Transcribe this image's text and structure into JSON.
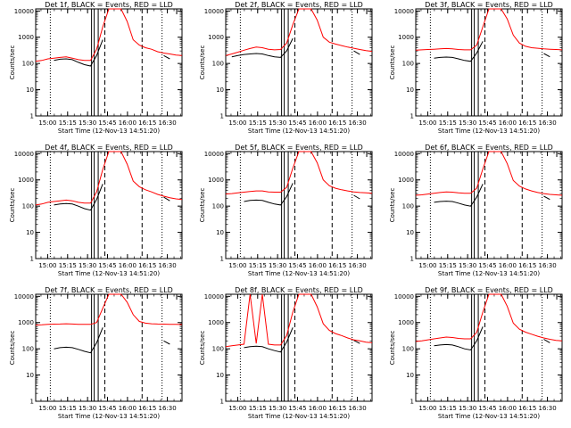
{
  "shared": {
    "xlabel": "Start Time (12-Nov-13 14:51:20)",
    "ylabel": "Counts/sec",
    "x_ticks": [
      "15:00",
      "15:15",
      "15:30",
      "15:45",
      "16:00",
      "16:15",
      "16:30"
    ],
    "y_ticks": [
      "1",
      "10",
      "100",
      "1000",
      "10000"
    ],
    "xlim_minutes_after_start": [
      0,
      110
    ],
    "ylim": [
      1,
      12000
    ],
    "y_scale": "log",
    "line_colors": {
      "events": "#000000",
      "lld": "#ff0000"
    }
  },
  "chart_data": [
    {
      "type": "line",
      "title": "Det 1f, BLACK = Events, RED = LLD",
      "series": [
        {
          "values": [
            null,
            null,
            null,
            130,
            145,
            150,
            140,
            110,
            90,
            80,
            200,
            800,
            null,
            null,
            null,
            null,
            null,
            null,
            null,
            null,
            null,
            200,
            150,
            null,
            null
          ]
        },
        {
          "values": [
            120,
            130,
            150,
            160,
            170,
            180,
            160,
            140,
            130,
            130,
            350,
            2500,
            12000,
            12000,
            12000,
            4000,
            800,
            500,
            400,
            350,
            280,
            250,
            230,
            210,
            200
          ]
        }
      ]
    },
    {
      "type": "line",
      "title": "Det 2f, BLACK = Events, RED = LLD",
      "series": [
        {
          "values": [
            null,
            180,
            200,
            220,
            230,
            240,
            230,
            200,
            180,
            170,
            300,
            900,
            null,
            null,
            null,
            null,
            null,
            null,
            null,
            null,
            null,
            300,
            220,
            null,
            null
          ]
        },
        {
          "values": [
            200,
            230,
            270,
            320,
            370,
            420,
            400,
            350,
            330,
            340,
            600,
            3000,
            12000,
            12000,
            12000,
            4500,
            1000,
            650,
            550,
            480,
            420,
            380,
            340,
            310,
            290
          ]
        }
      ]
    },
    {
      "type": "line",
      "title": "Det 3f, BLACK = Events, RED = LLD",
      "series": [
        {
          "values": [
            null,
            null,
            null,
            160,
            170,
            175,
            170,
            150,
            130,
            120,
            250,
            700,
            null,
            null,
            null,
            null,
            null,
            null,
            null,
            null,
            null,
            240,
            180,
            null,
            null
          ]
        },
        {
          "values": [
            320,
            330,
            340,
            350,
            360,
            370,
            360,
            340,
            330,
            330,
            500,
            2500,
            12000,
            12000,
            12000,
            5000,
            1200,
            600,
            450,
            400,
            380,
            360,
            350,
            340,
            330
          ]
        }
      ]
    },
    {
      "type": "line",
      "title": "Det 4f, BLACK = Events, RED = LLD",
      "series": [
        {
          "values": [
            null,
            null,
            null,
            110,
            120,
            125,
            120,
            100,
            80,
            70,
            180,
            700,
            null,
            null,
            null,
            null,
            null,
            null,
            null,
            null,
            null,
            220,
            160,
            null,
            null
          ]
        },
        {
          "values": [
            110,
            120,
            140,
            150,
            160,
            170,
            160,
            140,
            130,
            130,
            350,
            2500,
            12000,
            12000,
            12000,
            4000,
            900,
            550,
            420,
            350,
            280,
            240,
            210,
            190,
            180
          ]
        }
      ]
    },
    {
      "type": "line",
      "title": "Det 5f, BLACK = Events, RED = LLD",
      "series": [
        {
          "values": [
            null,
            null,
            null,
            150,
            165,
            170,
            165,
            140,
            120,
            110,
            230,
            750,
            null,
            null,
            null,
            null,
            null,
            null,
            null,
            null,
            null,
            260,
            190,
            null,
            null
          ]
        },
        {
          "values": [
            290,
            300,
            320,
            340,
            360,
            380,
            380,
            350,
            340,
            340,
            520,
            2800,
            12000,
            12000,
            12000,
            4500,
            1000,
            600,
            480,
            420,
            380,
            350,
            330,
            320,
            310
          ]
        }
      ]
    },
    {
      "type": "line",
      "title": "Det 6f, BLACK = Events, RED = LLD",
      "series": [
        {
          "values": [
            null,
            null,
            null,
            140,
            150,
            155,
            150,
            130,
            110,
            100,
            220,
            700,
            null,
            null,
            null,
            null,
            null,
            null,
            null,
            null,
            null,
            240,
            180,
            null,
            null
          ]
        },
        {
          "values": [
            260,
            270,
            290,
            310,
            330,
            350,
            340,
            320,
            310,
            310,
            480,
            2600,
            12000,
            12000,
            12000,
            4200,
            950,
            580,
            450,
            380,
            330,
            300,
            280,
            270,
            260
          ]
        }
      ]
    },
    {
      "type": "line",
      "title": "Det 7f, BLACK = Events, RED = LLD",
      "series": [
        {
          "values": [
            null,
            null,
            null,
            100,
            110,
            115,
            110,
            95,
            80,
            70,
            170,
            650,
            null,
            null,
            null,
            null,
            null,
            null,
            null,
            null,
            null,
            200,
            150,
            null,
            null
          ]
        },
        {
          "values": [
            800,
            820,
            850,
            870,
            880,
            900,
            880,
            860,
            850,
            850,
            1000,
            3500,
            12000,
            12000,
            12000,
            6000,
            2000,
            1100,
            950,
            900,
            880,
            870,
            860,
            850,
            840
          ]
        }
      ]
    },
    {
      "type": "line",
      "title": "Det 8f, BLACK = Events, RED = LLD",
      "series": [
        {
          "values": [
            null,
            null,
            null,
            110,
            120,
            125,
            120,
            100,
            85,
            75,
            180,
            650,
            null,
            null,
            null,
            null,
            null,
            null,
            null,
            null,
            null,
            210,
            160,
            null,
            null
          ]
        },
        {
          "values": [
            120,
            130,
            140,
            150,
            12000,
            160,
            12000,
            150,
            140,
            140,
            320,
            2500,
            12000,
            12000,
            12000,
            4000,
            900,
            500,
            380,
            320,
            260,
            220,
            200,
            180,
            170
          ]
        }
      ]
    },
    {
      "type": "line",
      "title": "Det 9f, BLACK = Events, RED = LLD",
      "series": [
        {
          "values": [
            null,
            null,
            null,
            130,
            140,
            145,
            140,
            120,
            100,
            90,
            200,
            700,
            null,
            null,
            null,
            null,
            null,
            null,
            null,
            null,
            null,
            230,
            170,
            null,
            null
          ]
        },
        {
          "values": [
            190,
            200,
            220,
            240,
            260,
            280,
            270,
            250,
            240,
            240,
            420,
            2500,
            12000,
            12000,
            12000,
            4200,
            950,
            560,
            430,
            360,
            300,
            260,
            230,
            210,
            200
          ]
        }
      ]
    }
  ]
}
